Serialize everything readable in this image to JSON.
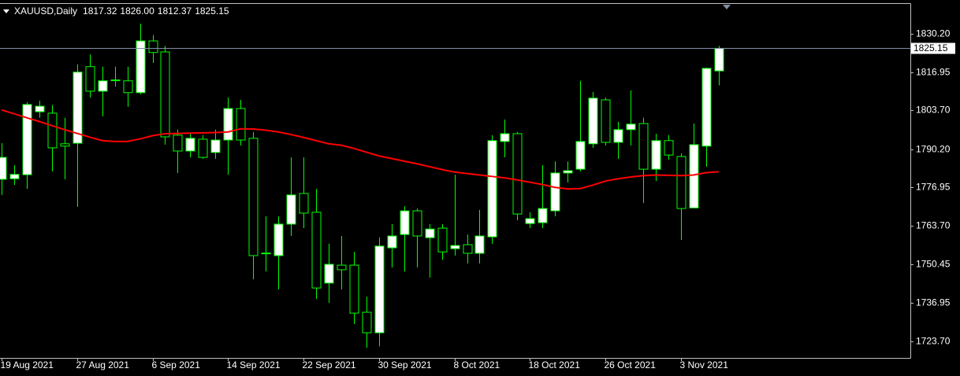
{
  "chart_data": {
    "type": "candlestick",
    "title": "XAUUSD,Daily",
    "ohlc_labels": [
      "1817.32",
      "1826.00",
      "1812.37",
      "1825.15"
    ],
    "categories": [
      "19 Aug 2021",
      null,
      null,
      null,
      null,
      null,
      "27 Aug 2021",
      null,
      null,
      null,
      null,
      null,
      "6 Sep 2021",
      null,
      null,
      null,
      null,
      null,
      "14 Sep 2021",
      null,
      null,
      null,
      null,
      null,
      "22 Sep 2021",
      null,
      null,
      null,
      null,
      null,
      "30 Sep 2021",
      null,
      null,
      null,
      null,
      null,
      "8 Oct 2021",
      null,
      null,
      null,
      null,
      null,
      "18 Oct 2021",
      null,
      null,
      null,
      null,
      null,
      "26 Oct 2021",
      null,
      null,
      null,
      null,
      null,
      "3 Nov 2021",
      null,
      null,
      null
    ],
    "open": [
      1779.8,
      1780.0,
      1781.4,
      1803.2,
      1802.7,
      1792.1,
      1792.3,
      1818.8,
      1810.3,
      1814.1,
      1813.9,
      1809.8,
      1827.7,
      1823.9,
      1795.1,
      1789.6,
      1793.7,
      1789.1,
      1793.4,
      1804.3,
      1794.0,
      1754.1,
      1753.4,
      1764.3,
      1774.9,
      1768.4,
      1743.9,
      1750.1,
      1750.1,
      1733.8,
      1726.7,
      1756.1,
      1760.7,
      1768.9,
      1759.6,
      1762.9,
      1755.8,
      1757.2,
      1754.2,
      1759.9,
      1792.9,
      1795.6,
      1764.5,
      1764.8,
      1768.9,
      1782.0,
      1783.3,
      1792.1,
      1807.3,
      1792.6,
      1797.0,
      1799.1,
      1783.3,
      1793.2,
      1787.7,
      1769.9,
      1791.3,
      1817.32
    ],
    "high": [
      1792.3,
      1784.7,
      1806.5,
      1807.0,
      1805.5,
      1801.1,
      1819.6,
      1823.0,
      1818.8,
      1818.8,
      1818.8,
      1833.7,
      1829.7,
      1826.0,
      1797.0,
      1795.6,
      1795.1,
      1797.0,
      1808.1,
      1807.3,
      1796.2,
      1767.0,
      1767.0,
      1787.4,
      1787.4,
      1776.5,
      1757.5,
      1760.2,
      1754.7,
      1739.2,
      1759.7,
      1764.3,
      1770.5,
      1769.7,
      1764.3,
      1764.3,
      1781.4,
      1760.7,
      1769.2,
      1795.1,
      1800.5,
      1796.2,
      1768.4,
      1784.7,
      1786.0,
      1786.0,
      1813.9,
      1810.0,
      1808.1,
      1799.7,
      1810.6,
      1801.1,
      1795.6,
      1795.1,
      1788.8,
      1799.1,
      1818.5,
      1826.0
    ],
    "low": [
      1774.4,
      1777.9,
      1776.5,
      1801.1,
      1782.5,
      1779.8,
      1770.3,
      1808.1,
      1801.6,
      1811.9,
      1804.9,
      1809.2,
      1820.1,
      1791.8,
      1782.0,
      1787.4,
      1786.9,
      1786.9,
      1781.4,
      1791.5,
      1745.2,
      1747.9,
      1741.7,
      1760.2,
      1762.9,
      1738.4,
      1737.1,
      1741.7,
      1729.7,
      1721.5,
      1722.0,
      1749.3,
      1747.9,
      1749.3,
      1745.8,
      1752.0,
      1753.4,
      1750.7,
      1750.7,
      1757.5,
      1787.4,
      1765.6,
      1762.9,
      1762.9,
      1767.0,
      1778.7,
      1782.5,
      1790.7,
      1791.5,
      1786.9,
      1791.5,
      1771.6,
      1779.2,
      1786.6,
      1758.8,
      1770.0,
      1784.2,
      1812.37
    ],
    "close": [
      1787.4,
      1781.5,
      1805.7,
      1805.1,
      1790.7,
      1791.3,
      1816.9,
      1810.3,
      1813.9,
      1814.2,
      1809.8,
      1827.7,
      1823.7,
      1794.5,
      1789.6,
      1794.0,
      1787.4,
      1793.4,
      1804.3,
      1793.4,
      1753.4,
      1754.3,
      1764.3,
      1774.4,
      1768.1,
      1742.2,
      1750.4,
      1748.5,
      1733.5,
      1726.7,
      1756.7,
      1760.2,
      1768.9,
      1760.2,
      1762.6,
      1754.7,
      1756.9,
      1754.2,
      1760.2,
      1793.2,
      1795.6,
      1767.8,
      1766.2,
      1769.7,
      1782.0,
      1782.8,
      1792.9,
      1807.9,
      1792.6,
      1797.0,
      1798.9,
      1783.3,
      1793.2,
      1788.2,
      1769.7,
      1791.8,
      1818.2,
      1825.15
    ],
    "up_color": "#ffffff",
    "down_color": "#000000",
    "wick_color": "#00ff00",
    "ma": {
      "color": "#ff0000",
      "values": [
        1803.8,
        1802.5,
        1801.1,
        1799.8,
        1798.4,
        1797.0,
        1795.7,
        1794.4,
        1793.2,
        1792.9,
        1792.9,
        1793.8,
        1794.9,
        1795.6,
        1795.7,
        1795.8,
        1795.9,
        1796.0,
        1796.2,
        1797.3,
        1797.2,
        1796.8,
        1796.2,
        1795.3,
        1794.3,
        1793.2,
        1792.1,
        1791.6,
        1790.5,
        1789.2,
        1787.9,
        1787.0,
        1786.1,
        1785.2,
        1784.2,
        1783.2,
        1782.3,
        1781.8,
        1781.3,
        1780.8,
        1780.3,
        1779.6,
        1778.8,
        1778.0,
        1777.0,
        1776.5,
        1776.6,
        1777.8,
        1779.2,
        1780.0,
        1780.6,
        1781.1,
        1781.3,
        1781.2,
        1781.1,
        1781.3,
        1782.1,
        1782.4
      ]
    },
    "last_price": 1825.15,
    "ylim": [
      1718.0,
      1840.5
    ],
    "yticks": [
      {
        "value": 1830.2,
        "label": "1830.20"
      },
      1816.95,
      {
        "value": 1803.7,
        "label": "1803.70"
      },
      {
        "value": 1790.2,
        "label": "1790.20"
      },
      1776.95,
      {
        "value": 1763.7,
        "label": "1763.70"
      },
      1750.45,
      1736.95,
      {
        "value": 1723.7,
        "label": "1723.70"
      }
    ],
    "grid": false
  }
}
